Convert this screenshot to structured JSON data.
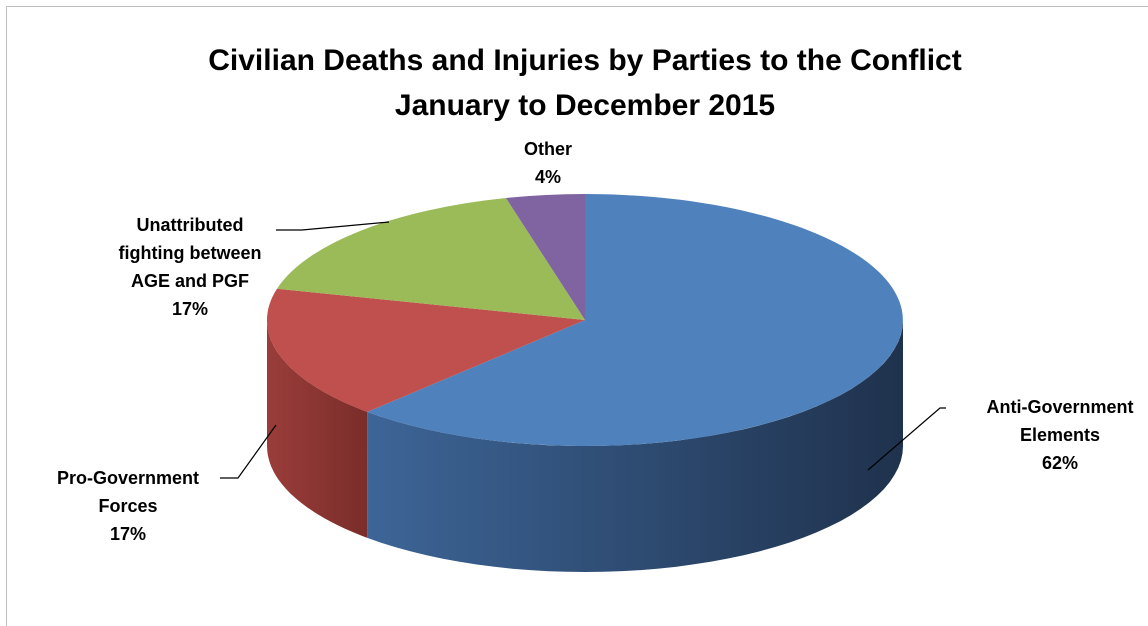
{
  "chart_data": {
    "type": "pie",
    "title_lines": [
      "Civilian Deaths and Injuries by Parties to the Conflict",
      "January to December 2015"
    ],
    "categories": [
      "Anti-Government Elements",
      "Pro-Government Forces",
      "Unattributed fighting between AGE and PGF",
      "Other"
    ],
    "values": [
      62,
      17,
      17,
      4
    ],
    "value_labels": [
      "62%",
      "17%",
      "17%",
      "4%"
    ],
    "label_lines": [
      [
        "Anti-Government",
        "Elements",
        "62%"
      ],
      [
        "Pro-Government",
        "Forces",
        "17%"
      ],
      [
        "Unattributed",
        "fighting between",
        "AGE and PGF",
        "17%"
      ],
      [
        "Other",
        "4%"
      ]
    ],
    "colors": {
      "top": [
        "#4f81bd",
        "#c0504d",
        "#9bbb59",
        "#8064a2"
      ],
      "side": [
        "#2e4a70",
        "#8a3330",
        "#6a8040",
        "#5a4775"
      ]
    },
    "style": "3d-pie",
    "legend": "none"
  }
}
